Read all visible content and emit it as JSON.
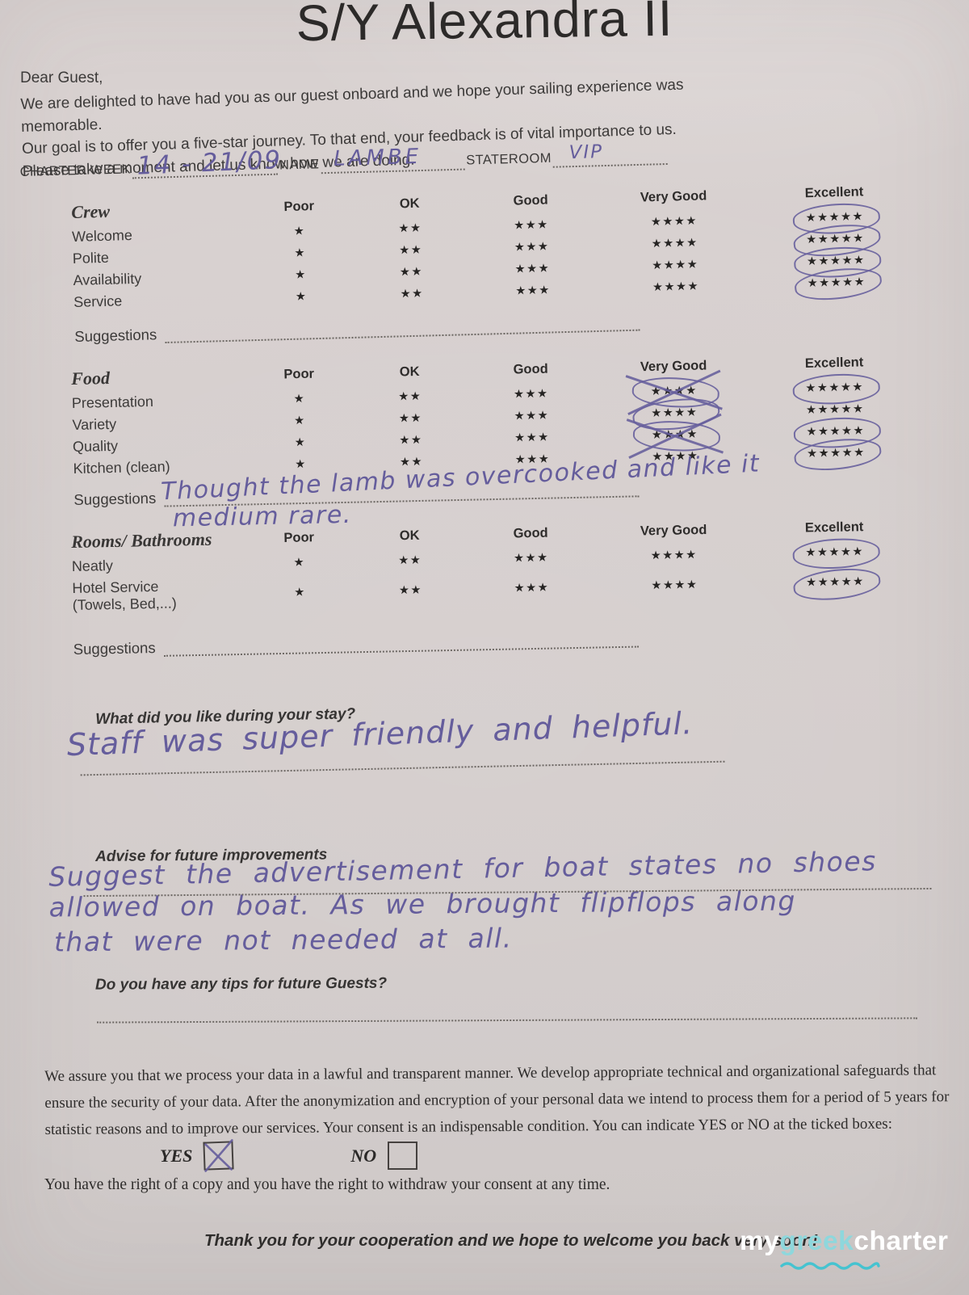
{
  "form": {
    "title": "S/Y Alexandra II",
    "greeting": "Dear Guest,",
    "intro_lines": [
      "We are delighted to have had you as our guest onboard and we hope your sailing experience was memorable.",
      "Our goal is to offer you a five-star journey. To that end, your feedback is of vital importance to us.",
      "Please take a moment and let us know how we are doing."
    ]
  },
  "header_fields": {
    "charter_week_label": "CHARTER WEEK",
    "charter_week_value": "14 - 21/09",
    "name_label": "NAME",
    "name_value": "LAMBE",
    "stateroom_label": "STATEROOM",
    "stateroom_value": "VIP"
  },
  "labels": {
    "suggestions": "Suggestions"
  },
  "rating_columns": [
    "Poor",
    "OK",
    "Good",
    "Very Good",
    "Excellent"
  ],
  "stars_per_column": [
    1,
    2,
    3,
    4,
    5
  ],
  "rating_sections": [
    {
      "name": "Crew",
      "rows": [
        {
          "label": "Welcome",
          "circled": "Excellent",
          "crossed": null
        },
        {
          "label": "Polite",
          "circled": "Excellent",
          "crossed": null
        },
        {
          "label": "Availability",
          "circled": "Excellent",
          "crossed": null
        },
        {
          "label": "Service",
          "circled": "Excellent",
          "crossed": null
        }
      ],
      "suggestions_value": ""
    },
    {
      "name": "Food",
      "rows": [
        {
          "label": "Presentation",
          "circled": "Excellent",
          "crossed": "Very Good"
        },
        {
          "label": "Variety",
          "circled": "Very Good",
          "crossed": null
        },
        {
          "label": "Quality",
          "circled": "Excellent",
          "crossed": "Very Good"
        },
        {
          "label": "Kitchen (clean)",
          "circled": "Excellent",
          "crossed": null
        }
      ],
      "suggestions_value": "Thought the lamb was overcooked and like it medium rare."
    },
    {
      "name": "Rooms/ Bathrooms",
      "rows": [
        {
          "label": "Neatly",
          "circled": "Excellent",
          "crossed": null
        },
        {
          "label": "Hotel Service (Towels, Bed,...)",
          "label_lines": [
            "Hotel Service",
            "(Towels, Bed,...)"
          ],
          "circled": "Excellent",
          "crossed": null
        }
      ],
      "suggestions_value": ""
    }
  ],
  "handwriting": {
    "food_suggestion_line1": "Thought the lamb was overcooked and like it",
    "food_suggestion_line2": "medium rare.",
    "liked_answer": "Staff was super friendly and helpful.",
    "advise_lines": [
      "Suggest the advertisement for boat states no shoes",
      "allowed on boat. As we brought flipflops along",
      "that were not needed at all."
    ]
  },
  "questions": {
    "liked": "What did you like during your stay?",
    "advise": "Advise for future improvements",
    "tips": "Do you have any tips for future Guests?",
    "tips_answer": ""
  },
  "consent": {
    "lines": [
      "We assure you that we process your data in a lawful and transparent manner. We develop appropriate technical and organizational safeguards that",
      "ensure the security of your data. After the anonymization and encryption of your personal data we intend to process them for a period of 5 years for",
      "statistic reasons and to improve our services. Your consent is an indispensable condition. You can indicate YES or NO at the ticked boxes:"
    ],
    "yes_label": "YES",
    "no_label": "NO",
    "yes_checked": true,
    "no_checked": false,
    "rights": "You have the right of a copy and you have the right to withdraw your consent at any time."
  },
  "footer": {
    "thanks": "Thank you for your cooperation and we hope to welcome you back very soon!",
    "logo_part1": "my",
    "logo_part2": "greek",
    "logo_part3": "charter"
  },
  "colors": {
    "ink": "#655d9c",
    "paper": "#d6cfce",
    "logo_accent": "#8ed7dc",
    "logo_wave": "#45c3d0",
    "logo_text": "#ffffff"
  }
}
